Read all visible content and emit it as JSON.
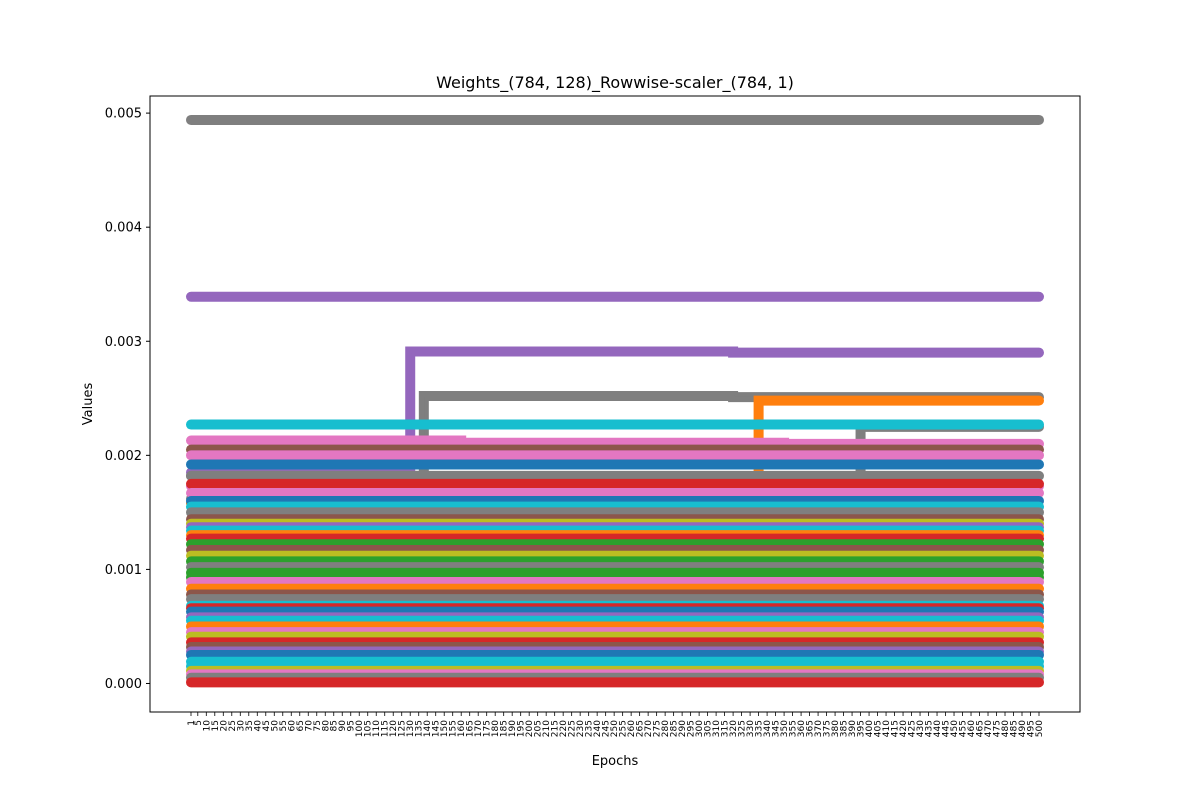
{
  "chart_data": {
    "type": "line",
    "title": "Weights_(784, 128)_Rowwise-scaler_(784, 1)",
    "xlabel": "Epochs",
    "ylabel": "Values",
    "x_range": [
      1,
      500
    ],
    "ylim": [
      -0.00025,
      0.00515
    ],
    "yticks": [
      0.0,
      0.001,
      0.002,
      0.003,
      0.004,
      0.005
    ],
    "ytick_labels": [
      "0.000",
      "0.001",
      "0.002",
      "0.003",
      "0.004",
      "0.005"
    ],
    "xtick_step": 5,
    "grid": false,
    "legend": "none",
    "marker": "circle",
    "series_count_note": "784 rows; representative series shown",
    "series": [
      {
        "color": "#7f7f7f",
        "segments": [
          [
            1,
            500,
            0.00494
          ]
        ]
      },
      {
        "color": "#9467bd",
        "segments": [
          [
            1,
            500,
            0.00339
          ]
        ]
      },
      {
        "color": "#9467bd",
        "segments": [
          [
            1,
            130,
            0.00185
          ],
          [
            130,
            320,
            0.00291
          ],
          [
            320,
            500,
            0.0029
          ]
        ]
      },
      {
        "color": "#7f7f7f",
        "segments": [
          [
            1,
            138,
            0.00182
          ],
          [
            138,
            320,
            0.00252
          ],
          [
            320,
            500,
            0.00251
          ]
        ]
      },
      {
        "color": "#ff7f0e",
        "segments": [
          [
            1,
            335,
            0.00158
          ],
          [
            335,
            500,
            0.00248
          ]
        ]
      },
      {
        "color": "#7f7f7f",
        "segments": [
          [
            1,
            395,
            0.00162
          ],
          [
            395,
            500,
            0.00225
          ]
        ]
      },
      {
        "color": "#17becf",
        "segments": [
          [
            1,
            500,
            0.00227
          ]
        ]
      },
      {
        "color": "#e377c2",
        "segments": [
          [
            1,
            160,
            0.00213
          ],
          [
            160,
            350,
            0.00211
          ],
          [
            350,
            500,
            0.0021
          ]
        ]
      },
      {
        "color": "#8c564b",
        "segments": [
          [
            1,
            500,
            0.00205
          ]
        ]
      },
      {
        "color": "#e377c2",
        "segments": [
          [
            1,
            500,
            0.002
          ]
        ]
      },
      {
        "color": "#1f77b4",
        "segments": [
          [
            1,
            500,
            0.00192
          ]
        ]
      },
      {
        "color": "#7f7f7f",
        "segments": [
          [
            1,
            500,
            0.00182
          ]
        ]
      },
      {
        "color": "#e377c2",
        "segments": [
          [
            1,
            500,
            0.00173
          ]
        ]
      },
      {
        "color": "#d62728",
        "segments": [
          [
            1,
            500,
            0.00175
          ]
        ]
      },
      {
        "color": "#e377c2",
        "segments": [
          [
            1,
            500,
            0.00167
          ]
        ]
      },
      {
        "color": "#1f77b4",
        "segments": [
          [
            1,
            500,
            0.0016
          ]
        ]
      },
      {
        "color": "#17becf",
        "segments": [
          [
            1,
            500,
            0.00155
          ]
        ]
      },
      {
        "color": "#7f7f7f",
        "segments": [
          [
            1,
            500,
            0.0015
          ]
        ]
      },
      {
        "color": "#8c564b",
        "segments": [
          [
            1,
            500,
            0.00144
          ]
        ]
      },
      {
        "color": "#bcbd22",
        "segments": [
          [
            1,
            500,
            0.0014
          ]
        ]
      },
      {
        "color": "#9467bd",
        "segments": [
          [
            1,
            500,
            0.00137
          ]
        ]
      },
      {
        "color": "#17becf",
        "segments": [
          [
            1,
            500,
            0.00134
          ]
        ]
      },
      {
        "color": "#ff7f0e",
        "segments": [
          [
            1,
            500,
            0.0013
          ]
        ]
      },
      {
        "color": "#d62728",
        "segments": [
          [
            1,
            500,
            0.00127
          ]
        ]
      },
      {
        "color": "#2ca02c",
        "segments": [
          [
            1,
            500,
            0.00122
          ]
        ]
      },
      {
        "color": "#8c564b",
        "segments": [
          [
            1,
            500,
            0.00117
          ]
        ]
      },
      {
        "color": "#bcbd22",
        "segments": [
          [
            1,
            500,
            0.00112
          ]
        ]
      },
      {
        "color": "#2ca02c",
        "segments": [
          [
            1,
            500,
            0.00107
          ]
        ]
      },
      {
        "color": "#7f7f7f",
        "segments": [
          [
            1,
            500,
            0.00102
          ]
        ]
      },
      {
        "color": "#2ca02c",
        "segments": [
          [
            1,
            500,
            0.00097
          ]
        ]
      },
      {
        "color": "#2ca02c",
        "segments": [
          [
            1,
            500,
            0.00093
          ]
        ]
      },
      {
        "color": "#e377c2",
        "segments": [
          [
            1,
            500,
            0.00089
          ]
        ]
      },
      {
        "color": "#ff7f0e",
        "segments": [
          [
            1,
            500,
            0.00083
          ]
        ]
      },
      {
        "color": "#8c564b",
        "segments": [
          [
            1,
            500,
            0.00078
          ]
        ]
      },
      {
        "color": "#7f7f7f",
        "segments": [
          [
            1,
            500,
            0.00074
          ]
        ]
      },
      {
        "color": "#17becf",
        "segments": [
          [
            1,
            500,
            0.00068
          ]
        ]
      },
      {
        "color": "#d62728",
        "segments": [
          [
            1,
            500,
            0.00066
          ]
        ]
      },
      {
        "color": "#1f77b4",
        "segments": [
          [
            1,
            500,
            0.00063
          ]
        ]
      },
      {
        "color": "#9467bd",
        "segments": [
          [
            1,
            500,
            0.00058
          ]
        ]
      },
      {
        "color": "#17becf",
        "segments": [
          [
            1,
            500,
            0.00055
          ]
        ]
      },
      {
        "color": "#ff7f0e",
        "segments": [
          [
            1,
            500,
            0.0005
          ]
        ]
      },
      {
        "color": "#e377c2",
        "segments": [
          [
            1,
            500,
            0.00045
          ]
        ]
      },
      {
        "color": "#bcbd22",
        "segments": [
          [
            1,
            500,
            0.00041
          ]
        ]
      },
      {
        "color": "#d62728",
        "segments": [
          [
            1,
            500,
            0.00036
          ]
        ]
      },
      {
        "color": "#8c564b",
        "segments": [
          [
            1,
            500,
            0.00032
          ]
        ]
      },
      {
        "color": "#9467bd",
        "segments": [
          [
            1,
            500,
            0.00028
          ]
        ]
      },
      {
        "color": "#1f77b4",
        "segments": [
          [
            1,
            500,
            0.00025
          ]
        ]
      },
      {
        "color": "#17becf",
        "segments": [
          [
            1,
            500,
            0.00019
          ]
        ]
      },
      {
        "color": "#17becf",
        "segments": [
          [
            1,
            500,
            0.00015
          ]
        ]
      },
      {
        "color": "#bcbd22",
        "segments": [
          [
            1,
            500,
            0.00011
          ]
        ]
      },
      {
        "color": "#e377c2",
        "segments": [
          [
            1,
            500,
            8e-05
          ]
        ]
      },
      {
        "color": "#7f7f7f",
        "segments": [
          [
            1,
            500,
            5e-05
          ]
        ]
      },
      {
        "color": "#d62728",
        "segments": [
          [
            1,
            500,
            1e-05
          ]
        ]
      }
    ]
  }
}
